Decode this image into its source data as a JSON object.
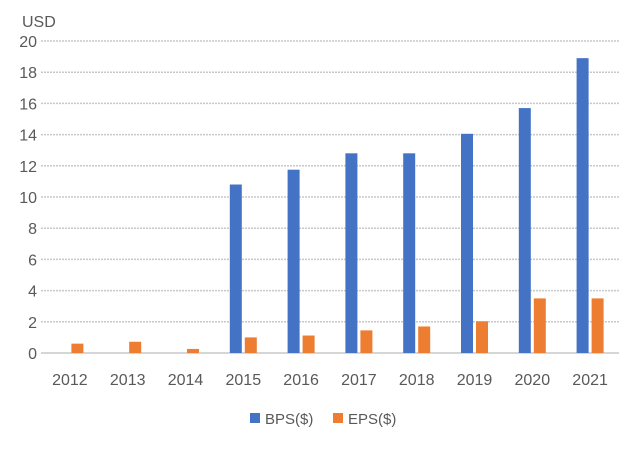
{
  "chart_data": {
    "type": "bar",
    "title": "",
    "ylabel": "USD",
    "xlabel": "",
    "ylim": [
      0,
      20
    ],
    "yticks": [
      0,
      2,
      4,
      6,
      8,
      10,
      12,
      14,
      16,
      18,
      20
    ],
    "grid": true,
    "legend_position": "bottom",
    "categories": [
      "2012",
      "2013",
      "2014",
      "2015",
      "2016",
      "2017",
      "2018",
      "2019",
      "2020",
      "2021"
    ],
    "series": [
      {
        "name": "BPS($)",
        "color": "#4472C4",
        "values": [
          null,
          null,
          null,
          10.8,
          11.75,
          12.8,
          12.8,
          14.05,
          15.7,
          18.9
        ]
      },
      {
        "name": "EPS($)",
        "color": "#ED7D31",
        "values": [
          0.6,
          0.72,
          0.26,
          1.0,
          1.12,
          1.45,
          1.7,
          2.03,
          3.5,
          3.5
        ]
      }
    ]
  }
}
